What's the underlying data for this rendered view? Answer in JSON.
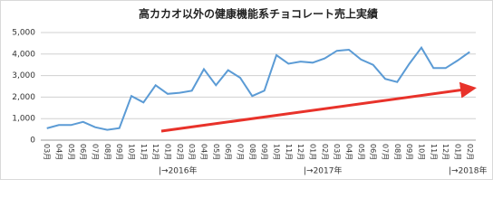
{
  "chart_data": {
    "type": "line",
    "title": "高カカオ以外の健康機能系チョコレート売上実績",
    "categories": [
      "03月",
      "04月",
      "05月",
      "06月",
      "07月",
      "08月",
      "09月",
      "10月",
      "11月",
      "12月",
      "01月",
      "02月",
      "03月",
      "04月",
      "05月",
      "06月",
      "07月",
      "08月",
      "09月",
      "10月",
      "11月",
      "12月",
      "01月",
      "02月",
      "03月",
      "04月",
      "05月",
      "06月",
      "07月",
      "08月",
      "09月",
      "10月",
      "11月",
      "12月",
      "01月",
      "02月"
    ],
    "series": [
      {
        "color": "#5b9bd5",
        "values": [
          550,
          700,
          700,
          850,
          600,
          480,
          560,
          2050,
          1750,
          2550,
          2150,
          2200,
          2300,
          3300,
          2550,
          3250,
          2900,
          2050,
          2300,
          3950,
          3550,
          3650,
          3600,
          3800,
          4150,
          4200,
          3750,
          3500,
          2850,
          2700,
          3550,
          4300,
          3350,
          3350,
          3700,
          4100
        ]
      }
    ],
    "ylim": [
      0,
      5000
    ],
    "yticks": [
      0,
      {
        "value": 1000,
        "label": "1,000"
      },
      {
        "value": 2000,
        "label": "2,000"
      },
      {
        "value": 3000,
        "label": "3,000"
      },
      {
        "value": 4000,
        "label": "4,000"
      },
      {
        "value": 5000,
        "label": "5,000"
      }
    ],
    "grid": true,
    "annotations": [
      "|→2016年",
      "|→2017年",
      "|→2018年"
    ]
  }
}
